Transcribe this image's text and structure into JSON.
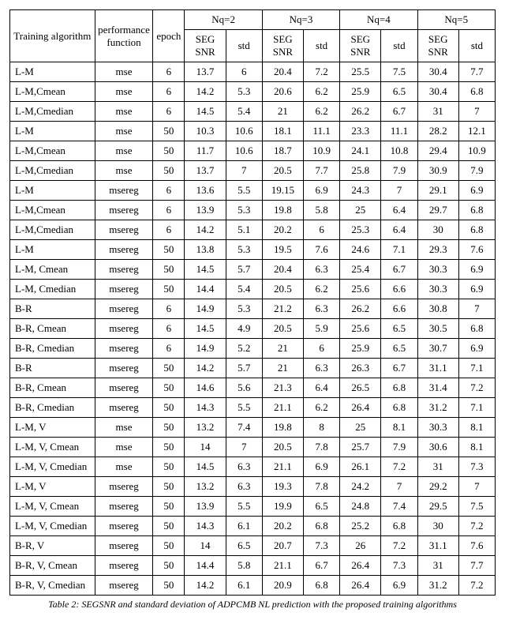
{
  "caption": "Table 2: SEGSNR and standard deviation of ADPCMB NL prediction with the proposed training algorithms",
  "headers": {
    "training_algo": "Training algorithm",
    "perf_func": "performance function",
    "epoch": "epoch",
    "groups": [
      "Nq=2",
      "Nq=3",
      "Nq=4",
      "Nq=5"
    ],
    "seg_snr": "SEG SNR",
    "std": "std"
  },
  "rows": [
    {
      "algo": "L-M",
      "pf": "mse",
      "epoch": "6",
      "v": [
        "13.7",
        "6",
        "20.4",
        "7.2",
        "25.5",
        "7.5",
        "30.4",
        "7.7"
      ]
    },
    {
      "algo": "L-M,Cmean",
      "pf": "mse",
      "epoch": "6",
      "v": [
        "14.2",
        "5.3",
        "20.6",
        "6.2",
        "25.9",
        "6.5",
        "30.4",
        "6.8"
      ]
    },
    {
      "algo": "L-M,Cmedian",
      "pf": "mse",
      "epoch": "6",
      "v": [
        "14.5",
        "5.4",
        "21",
        "6.2",
        "26.2",
        "6.7",
        "31",
        "7"
      ]
    },
    {
      "algo": "L-M",
      "pf": "mse",
      "epoch": "50",
      "v": [
        "10.3",
        "10.6",
        "18.1",
        "11.1",
        "23.3",
        "11.1",
        "28.2",
        "12.1"
      ]
    },
    {
      "algo": "L-M,Cmean",
      "pf": "mse",
      "epoch": "50",
      "v": [
        "11.7",
        "10.6",
        "18.7",
        "10.9",
        "24.1",
        "10.8",
        "29.4",
        "10.9"
      ]
    },
    {
      "algo": "L-M,Cmedian",
      "pf": "mse",
      "epoch": "50",
      "v": [
        "13.7",
        "7",
        "20.5",
        "7.7",
        "25.8",
        "7.9",
        "30.9",
        "7.9"
      ]
    },
    {
      "algo": "L-M",
      "pf": "msereg",
      "epoch": "6",
      "v": [
        "13.6",
        "5.5",
        "19.15",
        "6.9",
        "24.3",
        "7",
        "29.1",
        "6.9"
      ]
    },
    {
      "algo": "L-M,Cmean",
      "pf": "msereg",
      "epoch": "6",
      "v": [
        "13.9",
        "5.3",
        "19.8",
        "5.8",
        "25",
        "6.4",
        "29.7",
        "6.8"
      ]
    },
    {
      "algo": "L-M,Cmedian",
      "pf": "msereg",
      "epoch": "6",
      "v": [
        "14.2",
        "5.1",
        "20.2",
        "6",
        "25.3",
        "6.4",
        "30",
        "6.8"
      ]
    },
    {
      "algo": "L-M",
      "pf": "msereg",
      "epoch": "50",
      "v": [
        "13.8",
        "5.3",
        "19.5",
        "7.6",
        "24.6",
        "7.1",
        "29.3",
        "7.6"
      ]
    },
    {
      "algo": "L-M, Cmean",
      "pf": "msereg",
      "epoch": "50",
      "v": [
        "14.5",
        "5.7",
        "20.4",
        "6.3",
        "25.4",
        "6.7",
        "30.3",
        "6.9"
      ]
    },
    {
      "algo": "L-M, Cmedian",
      "pf": "msereg",
      "epoch": "50",
      "v": [
        "14.4",
        "5.4",
        "20.5",
        "6.2",
        "25.6",
        "6.6",
        "30.3",
        "6.9"
      ]
    },
    {
      "algo": "B-R",
      "pf": "msereg",
      "epoch": "6",
      "v": [
        "14.9",
        "5.3",
        "21.2",
        "6.3",
        "26.2",
        "6.6",
        "30.8",
        "7"
      ]
    },
    {
      "algo": "B-R, Cmean",
      "pf": "msereg",
      "epoch": "6",
      "v": [
        "14.5",
        "4.9",
        "20.5",
        "5.9",
        "25.6",
        "6.5",
        "30.5",
        "6.8"
      ]
    },
    {
      "algo": "B-R, Cmedian",
      "pf": "msereg",
      "epoch": "6",
      "v": [
        "14.9",
        "5.2",
        "21",
        "6",
        "25.9",
        "6.5",
        "30.7",
        "6.9"
      ]
    },
    {
      "algo": "B-R",
      "pf": "msereg",
      "epoch": "50",
      "v": [
        "14.2",
        "5.7",
        "21",
        "6.3",
        "26.3",
        "6.7",
        "31.1",
        "7.1"
      ]
    },
    {
      "algo": "B-R, Cmean",
      "pf": "msereg",
      "epoch": "50",
      "v": [
        "14.6",
        "5.6",
        "21.3",
        "6.4",
        "26.5",
        "6.8",
        "31.4",
        "7.2"
      ]
    },
    {
      "algo": "B-R, Cmedian",
      "pf": "msereg",
      "epoch": "50",
      "v": [
        "14.3",
        "5.5",
        "21.1",
        "6.2",
        "26.4",
        "6.8",
        "31.2",
        "7.1"
      ]
    },
    {
      "algo": "L-M, V",
      "pf": "mse",
      "epoch": "50",
      "v": [
        "13.2",
        "7.4",
        "19.8",
        "8",
        "25",
        "8.1",
        "30.3",
        "8.1"
      ]
    },
    {
      "algo": "L-M, V, Cmean",
      "pf": "mse",
      "epoch": "50",
      "v": [
        "14",
        "7",
        "20.5",
        "7.8",
        "25.7",
        "7.9",
        "30.6",
        "8.1"
      ]
    },
    {
      "algo": "L-M, V, Cmedian",
      "pf": "mse",
      "epoch": "50",
      "v": [
        "14.5",
        "6.3",
        "21.1",
        "6.9",
        "26.1",
        "7.2",
        "31",
        "7.3"
      ]
    },
    {
      "algo": "L-M, V",
      "pf": "msereg",
      "epoch": "50",
      "v": [
        "13.2",
        "6.3",
        "19.3",
        "7.8",
        "24.2",
        "7",
        "29.2",
        "7"
      ]
    },
    {
      "algo": "L-M, V, Cmean",
      "pf": "msereg",
      "epoch": "50",
      "v": [
        "13.9",
        "5.5",
        "19.9",
        "6.5",
        "24.8",
        "7.4",
        "29.5",
        "7.5"
      ]
    },
    {
      "algo": "L-M, V, Cmedian",
      "pf": "msereg",
      "epoch": "50",
      "v": [
        "14.3",
        "6.1",
        "20.2",
        "6.8",
        "25.2",
        "6.8",
        "30",
        "7.2"
      ]
    },
    {
      "algo": "B-R, V",
      "pf": "msereg",
      "epoch": "50",
      "v": [
        "14",
        "6.5",
        "20.7",
        "7.3",
        "26",
        "7.2",
        "31.1",
        "7.6"
      ]
    },
    {
      "algo": "B-R, V, Cmean",
      "pf": "msereg",
      "epoch": "50",
      "v": [
        "14.4",
        "5.8",
        "21.1",
        "6.7",
        "26.4",
        "7.3",
        "31",
        "7.7"
      ]
    },
    {
      "algo": "B-R, V, Cmedian",
      "pf": "msereg",
      "epoch": "50",
      "v": [
        "14.2",
        "6.1",
        "20.9",
        "6.8",
        "26.4",
        "6.9",
        "31.2",
        "7.2"
      ]
    }
  ]
}
